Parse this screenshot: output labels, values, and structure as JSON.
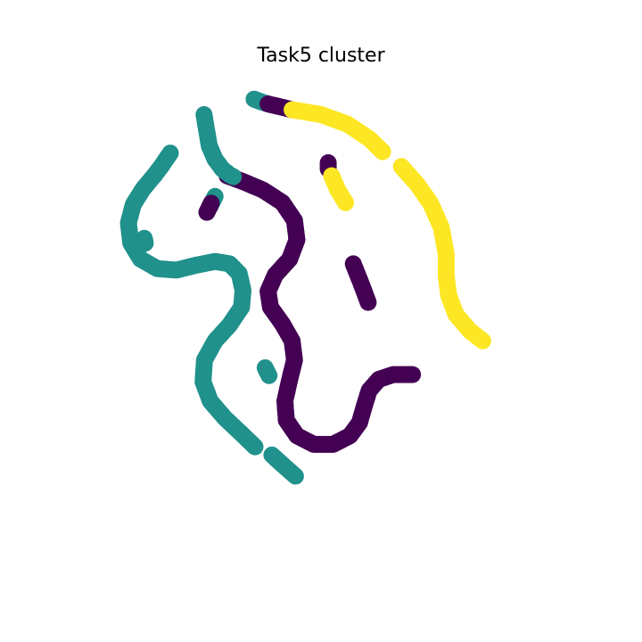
{
  "chart_data": {
    "type": "scatter",
    "title": "Task5 cluster",
    "xlabel": "",
    "ylabel": "",
    "axes_visible": false,
    "grid": false,
    "legend": "none",
    "xlim": [
      0,
      1
    ],
    "ylim": [
      0,
      1
    ],
    "colors": {
      "purple": "#440154",
      "teal": "#21918c",
      "yellow": "#fde725"
    },
    "segments": [
      {
        "color": "teal",
        "points": [
          [
            0.361,
            0.957
          ],
          [
            0.374,
            0.952
          ],
          [
            0.39,
            0.947
          ]
        ]
      },
      {
        "color": "purple",
        "points": [
          [
            0.39,
            0.947
          ],
          [
            0.42,
            0.94
          ],
          [
            0.44,
            0.935
          ]
        ]
      },
      {
        "color": "yellow",
        "points": [
          [
            0.44,
            0.935
          ],
          [
            0.5,
            0.925
          ],
          [
            0.555,
            0.905
          ],
          [
            0.6,
            0.875
          ],
          [
            0.628,
            0.848
          ]
        ]
      },
      {
        "color": "yellow",
        "points": [
          [
            0.667,
            0.817
          ],
          [
            0.7,
            0.78
          ],
          [
            0.728,
            0.74
          ],
          [
            0.75,
            0.69
          ],
          [
            0.76,
            0.635
          ],
          [
            0.76,
            0.59
          ],
          [
            0.765,
            0.55
          ],
          [
            0.78,
            0.51
          ],
          [
            0.81,
            0.475
          ],
          [
            0.836,
            0.455
          ]
        ]
      },
      {
        "color": "purple",
        "points": [
          [
            0.305,
            0.798
          ],
          [
            0.34,
            0.785
          ],
          [
            0.38,
            0.768
          ],
          [
            0.42,
            0.742
          ],
          [
            0.445,
            0.705
          ],
          [
            0.45,
            0.665
          ],
          [
            0.435,
            0.625
          ],
          [
            0.405,
            0.592
          ],
          [
            0.39,
            0.558
          ],
          [
            0.395,
            0.525
          ],
          [
            0.42,
            0.49
          ],
          [
            0.44,
            0.455
          ],
          [
            0.445,
            0.415
          ],
          [
            0.435,
            0.375
          ],
          [
            0.425,
            0.33
          ],
          [
            0.428,
            0.29
          ],
          [
            0.45,
            0.258
          ],
          [
            0.485,
            0.24
          ],
          [
            0.525,
            0.24
          ],
          [
            0.56,
            0.258
          ],
          [
            0.58,
            0.285
          ],
          [
            0.59,
            0.32
          ],
          [
            0.6,
            0.352
          ],
          [
            0.62,
            0.375
          ],
          [
            0.65,
            0.385
          ],
          [
            0.69,
            0.385
          ]
        ]
      },
      {
        "color": "teal",
        "points": [
          [
            0.257,
            0.925
          ],
          [
            0.262,
            0.895
          ],
          [
            0.268,
            0.86
          ],
          [
            0.28,
            0.832
          ],
          [
            0.295,
            0.812
          ],
          [
            0.31,
            0.8
          ],
          [
            0.318,
            0.796
          ]
        ]
      },
      {
        "color": "teal",
        "points": [
          [
            0.187,
            0.845
          ],
          [
            0.17,
            0.82
          ],
          [
            0.155,
            0.8
          ]
        ]
      },
      {
        "color": "teal",
        "points": [
          [
            0.155,
            0.8
          ],
          [
            0.13,
            0.77
          ],
          [
            0.11,
            0.738
          ],
          [
            0.1,
            0.7
          ],
          [
            0.105,
            0.658
          ],
          [
            0.125,
            0.625
          ],
          [
            0.16,
            0.605
          ],
          [
            0.2,
            0.602
          ],
          [
            0.24,
            0.612
          ],
          [
            0.28,
            0.62
          ],
          [
            0.31,
            0.615
          ],
          [
            0.33,
            0.595
          ],
          [
            0.338,
            0.56
          ],
          [
            0.335,
            0.525
          ],
          [
            0.31,
            0.488
          ],
          [
            0.28,
            0.455
          ],
          [
            0.258,
            0.415
          ],
          [
            0.255,
            0.37
          ],
          [
            0.27,
            0.33
          ],
          [
            0.3,
            0.295
          ],
          [
            0.335,
            0.262
          ],
          [
            0.363,
            0.235
          ]
        ]
      },
      {
        "color": "teal",
        "points": [
          [
            0.398,
            0.218
          ],
          [
            0.42,
            0.198
          ],
          [
            0.447,
            0.174
          ]
        ]
      },
      {
        "color": "teal",
        "points": [
          [
            0.384,
            0.399
          ],
          [
            0.392,
            0.383
          ]
        ]
      },
      {
        "color": "teal",
        "points": [
          [
            0.133,
            0.668
          ],
          [
            0.135,
            0.658
          ]
        ]
      },
      {
        "color": "teal",
        "points": [
          [
            0.28,
            0.755
          ],
          [
            0.27,
            0.735
          ]
        ]
      },
      {
        "color": "purple",
        "points": [
          [
            0.272,
            0.741
          ],
          [
            0.263,
            0.722
          ]
        ]
      },
      {
        "color": "purple",
        "points": [
          [
            0.515,
            0.825
          ],
          [
            0.515,
            0.812
          ]
        ]
      },
      {
        "color": "yellow",
        "points": [
          [
            0.522,
            0.798
          ],
          [
            0.535,
            0.768
          ],
          [
            0.551,
            0.742
          ]
        ]
      },
      {
        "color": "purple",
        "points": [
          [
            0.567,
            0.615
          ],
          [
            0.583,
            0.575
          ],
          [
            0.598,
            0.535
          ]
        ]
      }
    ]
  }
}
